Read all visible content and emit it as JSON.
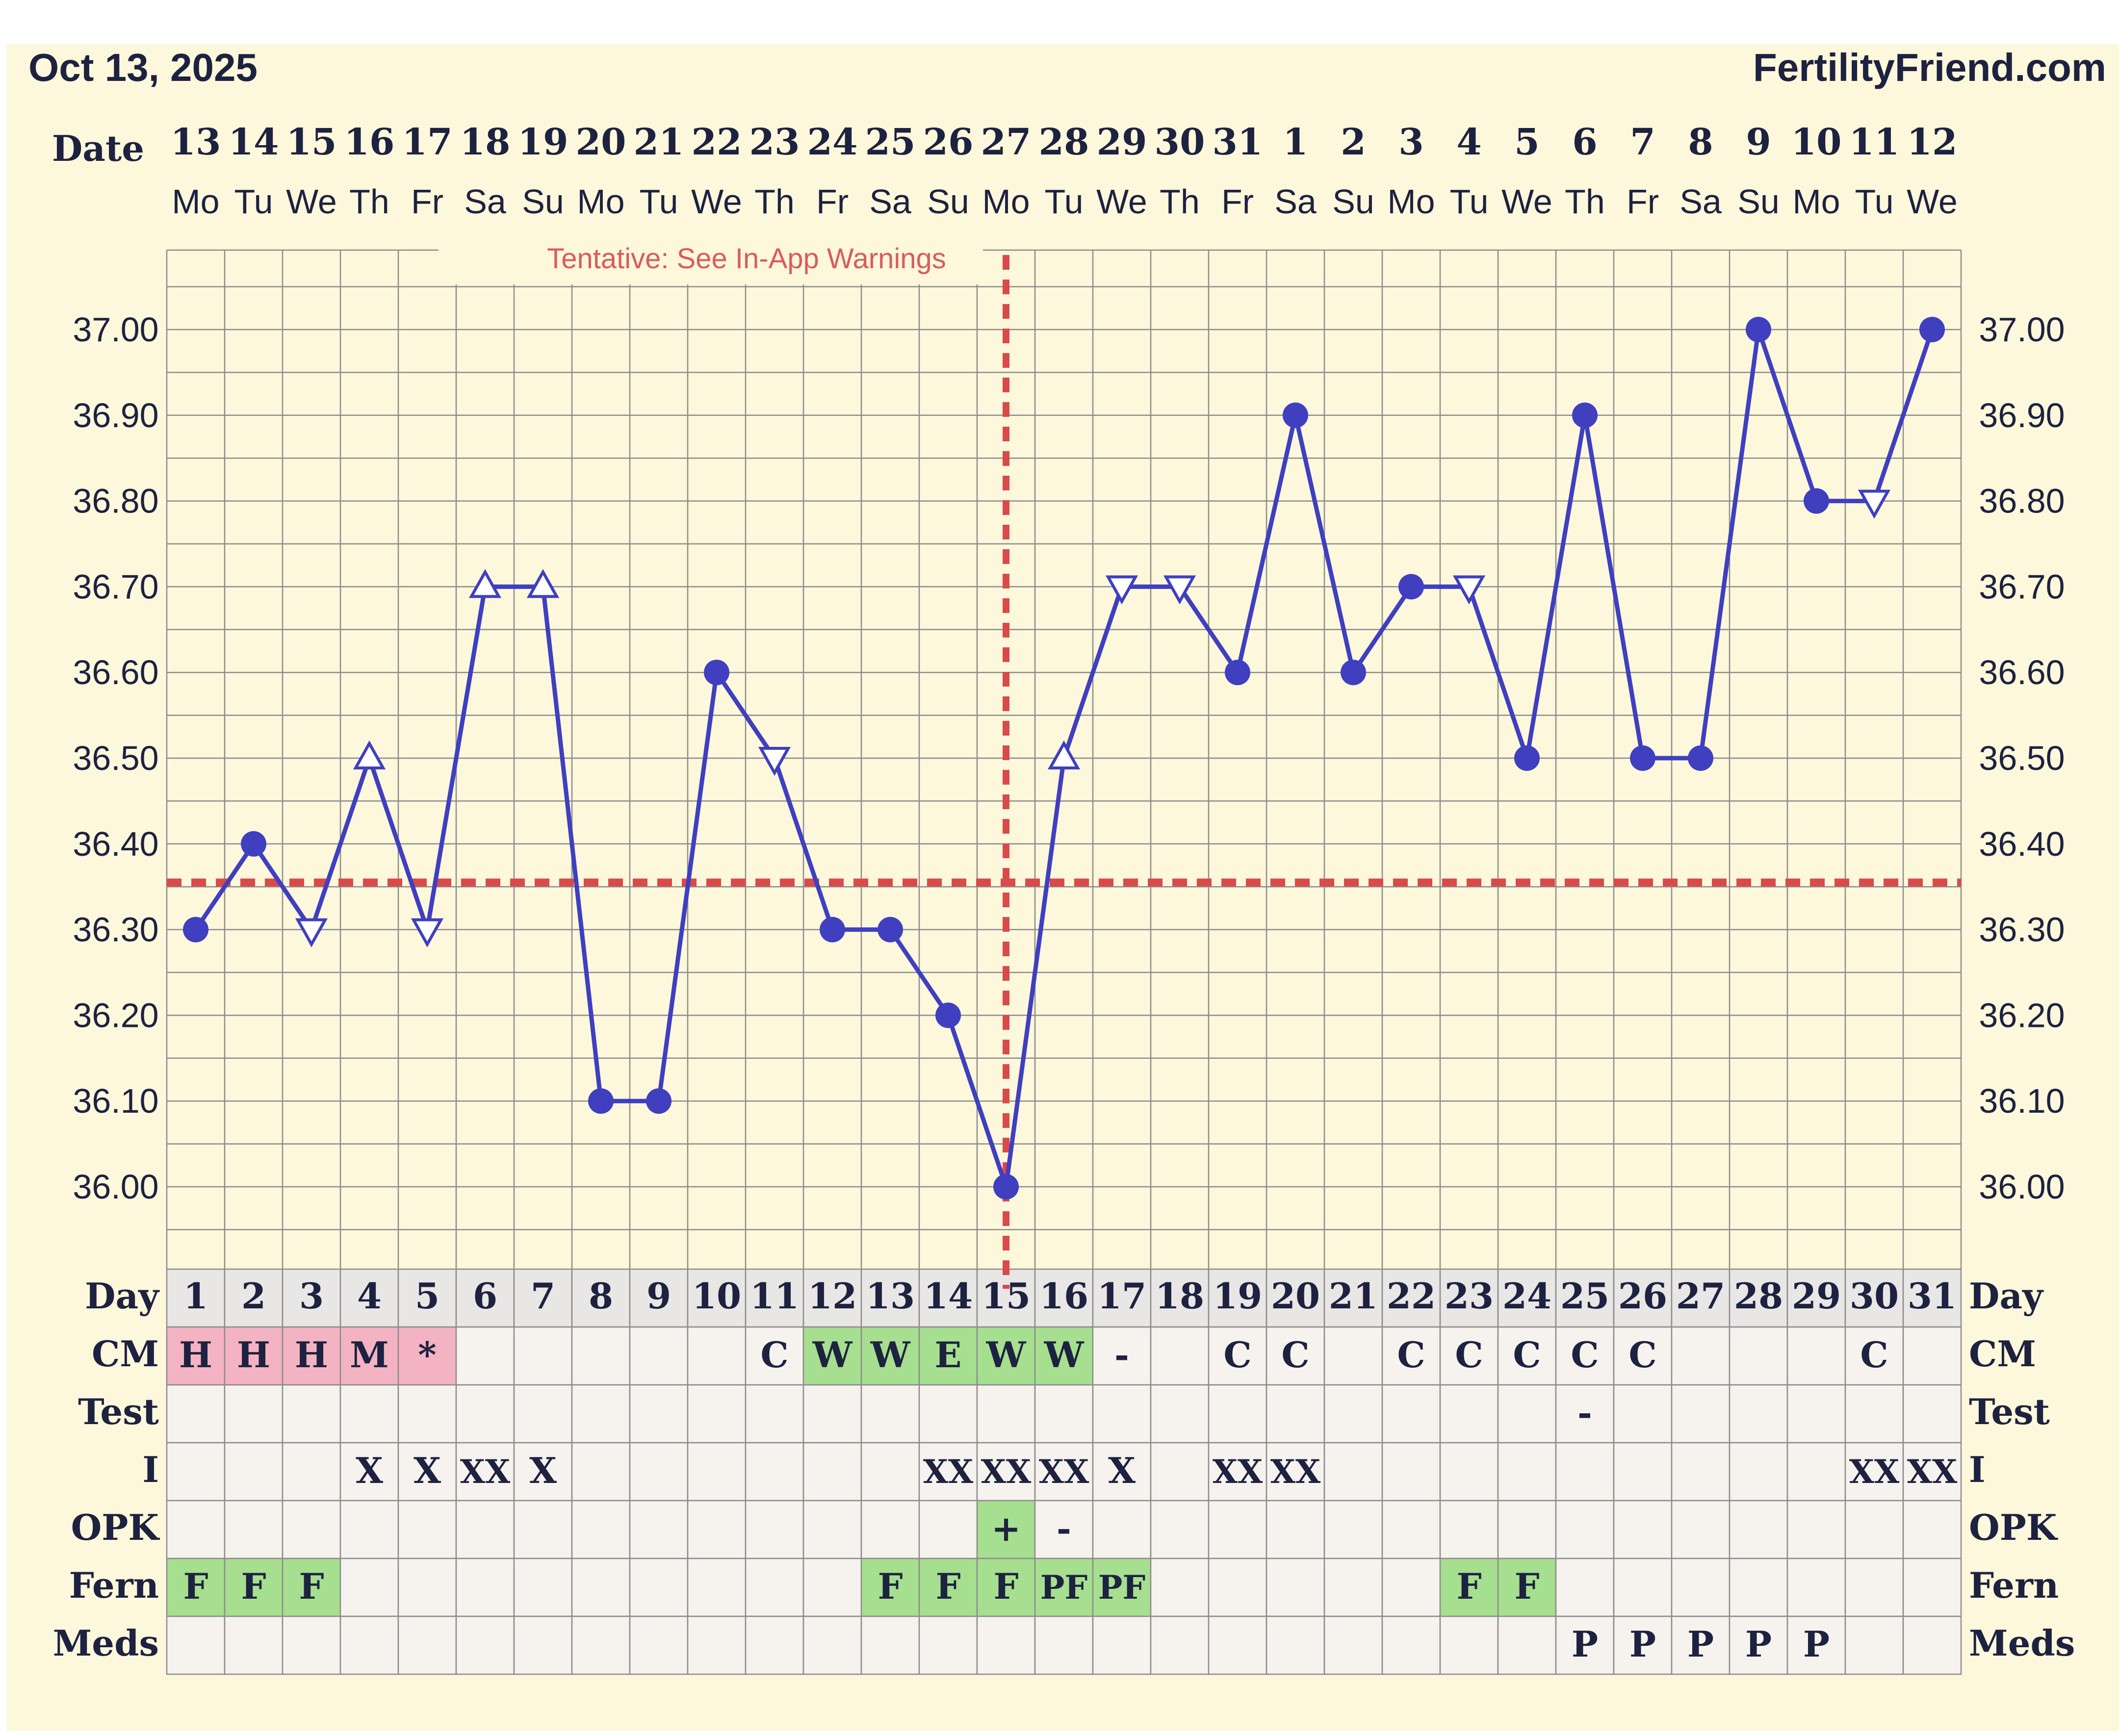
{
  "header": {
    "date": "Oct 13, 2025",
    "site": "FertilityFriend.com"
  },
  "labels": {
    "date_row": "Date",
    "warning": "Tentative: See In-App Warnings",
    "rows": [
      "Day",
      "CM",
      "Test",
      "I",
      "OPK",
      "Fern",
      "Meds"
    ]
  },
  "colors": {
    "background": "#fdf7db",
    "grid": "#8c8c8c",
    "line": "#3f3fc0",
    "coverline": "#d94a4a",
    "pink": "#f4b3c2",
    "green": "#a6df8f",
    "day_row": "#e9e6e6",
    "cell": "#f6f3ef"
  },
  "chart_data": {
    "type": "line",
    "dates": [
      "13",
      "14",
      "15",
      "16",
      "17",
      "18",
      "19",
      "20",
      "21",
      "22",
      "23",
      "24",
      "25",
      "26",
      "27",
      "28",
      "29",
      "30",
      "31",
      "1",
      "2",
      "3",
      "4",
      "5",
      "6",
      "7",
      "8",
      "9",
      "10",
      "11",
      "12"
    ],
    "weekdays": [
      "Mo",
      "Tu",
      "We",
      "Th",
      "Fr",
      "Sa",
      "Su",
      "Mo",
      "Tu",
      "We",
      "Th",
      "Fr",
      "Sa",
      "Su",
      "Mo",
      "Tu",
      "We",
      "Th",
      "Fr",
      "Sa",
      "Su",
      "Mo",
      "Tu",
      "We",
      "Th",
      "Fr",
      "Sa",
      "Su",
      "Mo",
      "Tu",
      "We"
    ],
    "days": [
      1,
      2,
      3,
      4,
      5,
      6,
      7,
      8,
      9,
      10,
      11,
      12,
      13,
      14,
      15,
      16,
      17,
      18,
      19,
      20,
      21,
      22,
      23,
      24,
      25,
      26,
      27,
      28,
      29,
      30,
      31
    ],
    "temperatures": [
      36.3,
      36.4,
      36.3,
      36.5,
      36.3,
      36.7,
      36.7,
      36.1,
      36.1,
      36.6,
      36.5,
      36.3,
      36.3,
      36.2,
      36.0,
      36.5,
      36.7,
      36.7,
      36.6,
      36.9,
      36.6,
      36.7,
      36.7,
      36.5,
      36.9,
      36.5,
      36.5,
      37.0,
      36.8,
      36.8,
      37.0
    ],
    "markers": [
      "dot",
      "dot",
      "tri-down",
      "tri-up",
      "tri-down",
      "tri-up",
      "tri-up",
      "dot",
      "dot",
      "dot",
      "tri-down",
      "dot",
      "dot",
      "dot",
      "dot",
      "tri-up",
      "tri-down",
      "tri-down",
      "dot",
      "dot",
      "dot",
      "dot",
      "tri-down",
      "dot",
      "dot",
      "dot",
      "dot",
      "dot",
      "dot",
      "tri-down",
      "dot"
    ],
    "y_ticks": [
      "37.00",
      "36.90",
      "36.80",
      "36.70",
      "36.60",
      "36.50",
      "36.40",
      "36.30",
      "36.20",
      "36.10",
      "36.00"
    ],
    "ylim": [
      35.95,
      37.05
    ],
    "coverline": 36.355,
    "ovulation_day": 15,
    "rows": {
      "CM": [
        "H",
        "H",
        "H",
        "M",
        "*",
        "",
        "",
        "",
        "",
        "",
        "C",
        "W",
        "W",
        "E",
        "W",
        "W",
        "-",
        "",
        "C",
        "C",
        "",
        "C",
        "C",
        "C",
        "C",
        "C",
        "",
        "",
        "",
        "C",
        ""
      ],
      "Test": [
        "",
        "",
        "",
        "",
        "",
        "",
        "",
        "",
        "",
        "",
        "",
        "",
        "",
        "",
        "",
        "",
        "",
        "",
        "",
        "",
        "",
        "",
        "",
        "",
        "-",
        "",
        "",
        "",
        "",
        "",
        ""
      ],
      "I": [
        "",
        "",
        "",
        "X",
        "X",
        "XX",
        "X",
        "",
        "",
        "",
        "",
        "",
        "",
        "XX",
        "XX",
        "XX",
        "X",
        "",
        "XX",
        "XX",
        "",
        "",
        "",
        "",
        "",
        "",
        "",
        "",
        "",
        "XX",
        "XX"
      ],
      "OPK": [
        "",
        "",
        "",
        "",
        "",
        "",
        "",
        "",
        "",
        "",
        "",
        "",
        "",
        "",
        "+",
        "-",
        "",
        "",
        "",
        "",
        "",
        "",
        "",
        "",
        "",
        "",
        "",
        "",
        "",
        "",
        ""
      ],
      "Fern": [
        "F",
        "F",
        "F",
        "",
        "",
        "",
        "",
        "",
        "",
        "",
        "",
        "",
        "F",
        "F",
        "F",
        "PF",
        "PF",
        "",
        "",
        "",
        "",
        "",
        "F",
        "F",
        "",
        "",
        "",
        "",
        "",
        "",
        ""
      ],
      "Meds": [
        "",
        "",
        "",
        "",
        "",
        "",
        "",
        "",
        "",
        "",
        "",
        "",
        "",
        "",
        "",
        "",
        "",
        "",
        "",
        "",
        "",
        "",
        "",
        "",
        "P",
        "P",
        "P",
        "P",
        "P",
        "",
        ""
      ]
    },
    "cell_fill": {
      "CM": [
        "pink",
        "pink",
        "pink",
        "pink",
        "pink",
        "",
        "",
        "",
        "",
        "",
        "",
        "green",
        "green",
        "green",
        "green",
        "green",
        "",
        "",
        "",
        "",
        "",
        "",
        "",
        "",
        "",
        "",
        "",
        "",
        "",
        "",
        ""
      ],
      "OPK": [
        "",
        "",
        "",
        "",
        "",
        "",
        "",
        "",
        "",
        "",
        "",
        "",
        "",
        "",
        "green",
        "",
        "",
        "",
        "",
        "",
        "",
        "",
        "",
        "",
        "",
        "",
        "",
        "",
        "",
        "",
        ""
      ],
      "Fern": [
        "green",
        "green",
        "green",
        "",
        "",
        "",
        "",
        "",
        "",
        "",
        "",
        "",
        "green",
        "green",
        "green",
        "green",
        "green",
        "",
        "",
        "",
        "",
        "",
        "green",
        "green",
        "",
        "",
        "",
        "",
        "",
        "",
        ""
      ]
    }
  }
}
